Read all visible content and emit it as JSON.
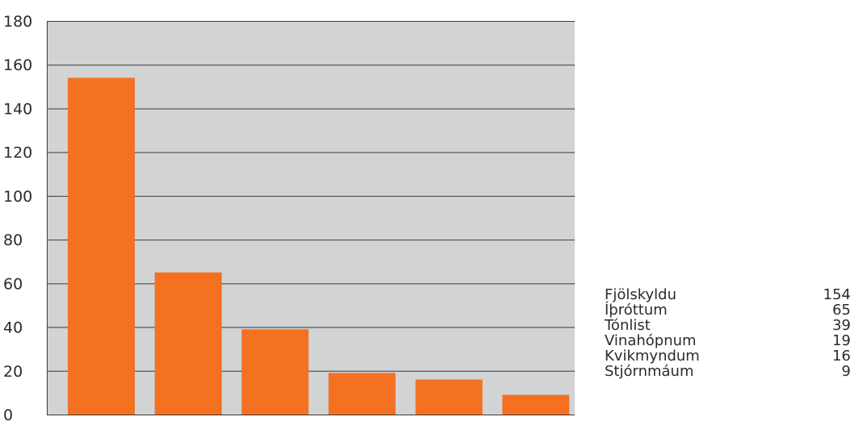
{
  "colors": {
    "bar": "#f37121",
    "plot_background": "#d1d3d4",
    "gridline": "#3a3a3a",
    "text": "#2b2b2b"
  },
  "chart_data": {
    "type": "bar",
    "title": "",
    "xlabel": "",
    "ylabel": "",
    "ylim": [
      0,
      180
    ],
    "yticks": [
      0,
      20,
      40,
      60,
      80,
      100,
      120,
      140,
      160,
      180
    ],
    "grid": true,
    "categories": [
      "Fjölskyldu",
      "Íþróttum",
      "Tónlist",
      "Vinahópnum",
      "Kvikmyndum",
      "Stjórnmáum"
    ],
    "values": [
      154,
      65,
      39,
      19,
      16,
      9
    ]
  },
  "legend_table": {
    "rows": [
      {
        "label": "Fjölskyldu",
        "value": "154"
      },
      {
        "label": "Íþróttum",
        "value": "65"
      },
      {
        "label": "Tónlist",
        "value": "39"
      },
      {
        "label": "Vinahópnum",
        "value": "19"
      },
      {
        "label": "Kvikmyndum",
        "value": "16"
      },
      {
        "label": "Stjórnmáum",
        "value": "9"
      }
    ]
  }
}
